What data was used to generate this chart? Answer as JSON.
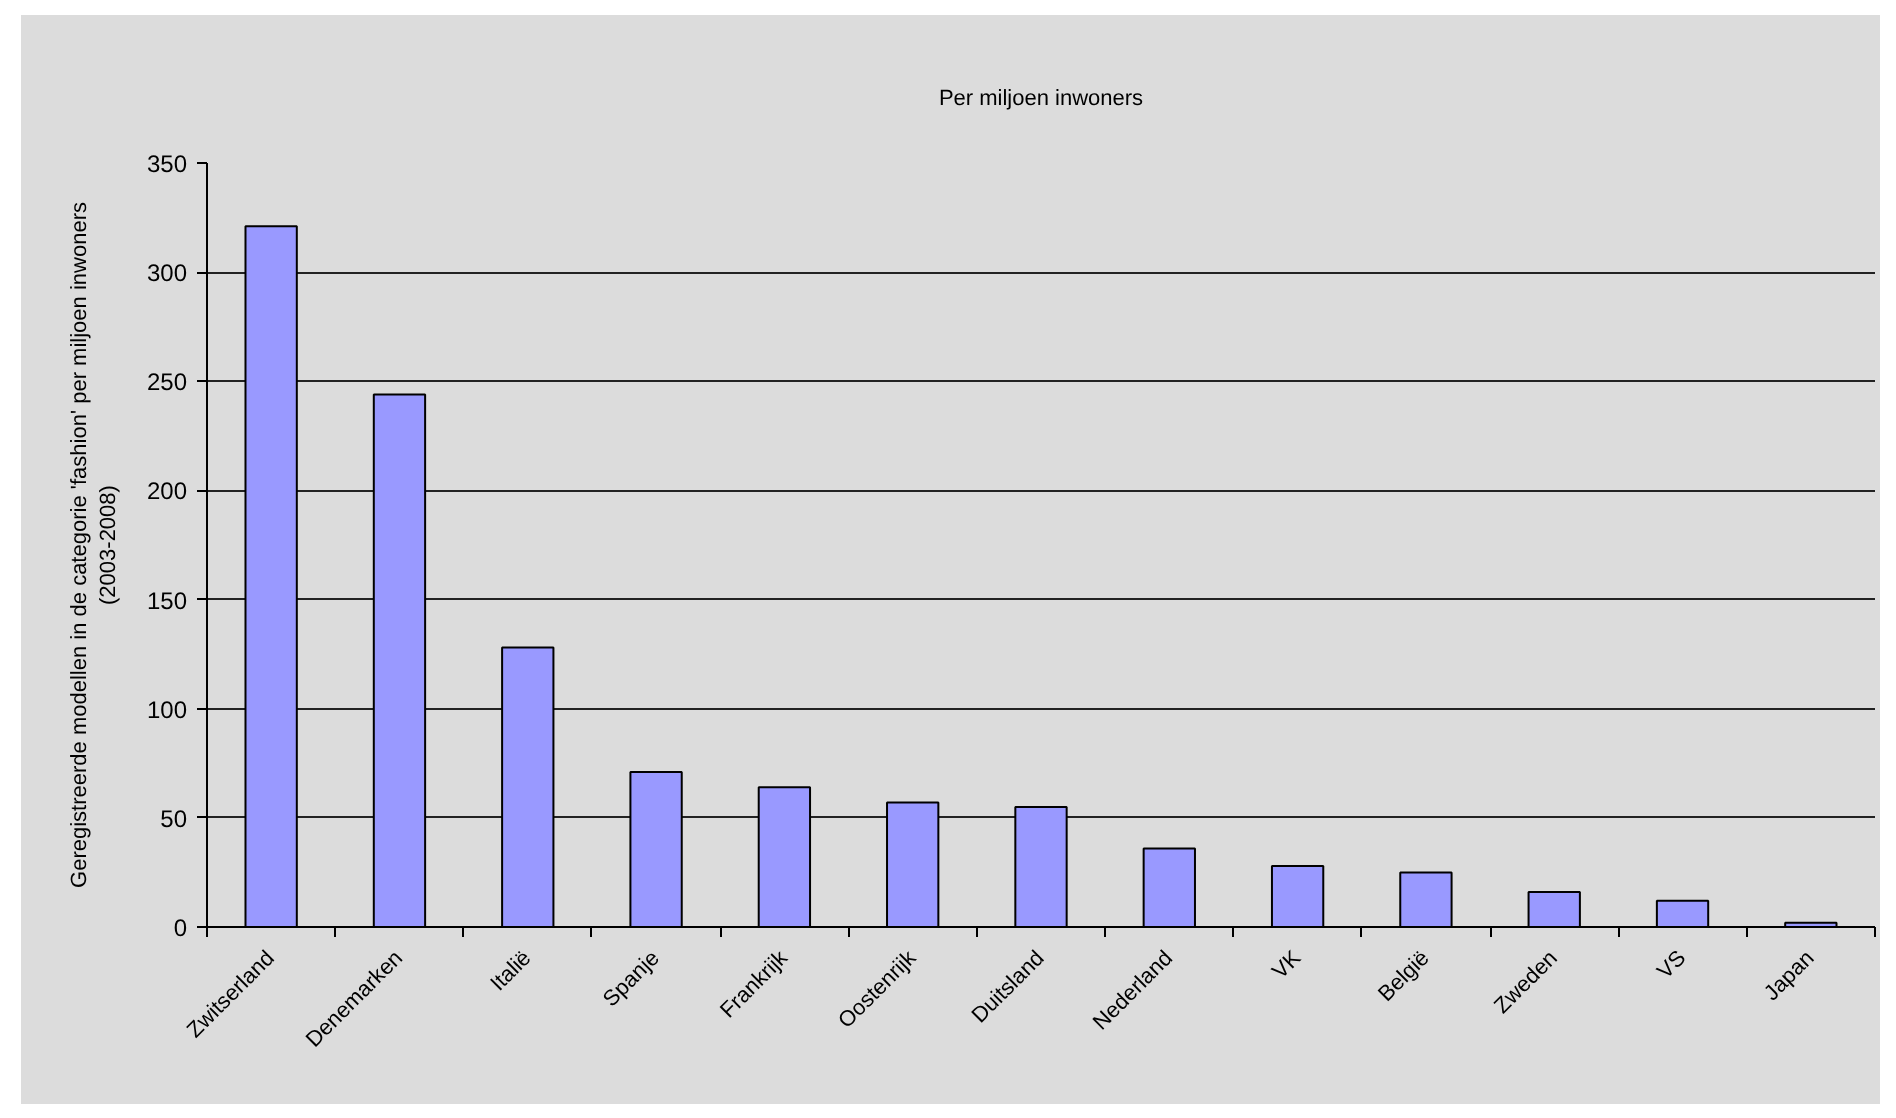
{
  "chart_data": {
    "type": "bar",
    "title": "Per miljoen inwoners",
    "ylabel": "Geregistreerde modellen in de categorie 'fashion' per miljoen inwoners\n(2003-2008)",
    "categories": [
      "Zwitserland",
      "Denemarken",
      "Italië",
      "Spanje",
      "Frankrijk",
      "Oostenrijk",
      "Duitsland",
      "Nederland",
      "VK",
      "België",
      "Zweden",
      "VS",
      "Japan"
    ],
    "values": [
      321,
      244,
      128,
      71,
      64,
      57,
      55,
      36,
      28,
      25,
      16,
      12,
      2
    ],
    "color": "#9999ff",
    "ylim": [
      0,
      350
    ],
    "yticks": [
      0,
      50,
      100,
      150,
      200,
      250,
      300,
      350
    ],
    "grid": "y"
  }
}
